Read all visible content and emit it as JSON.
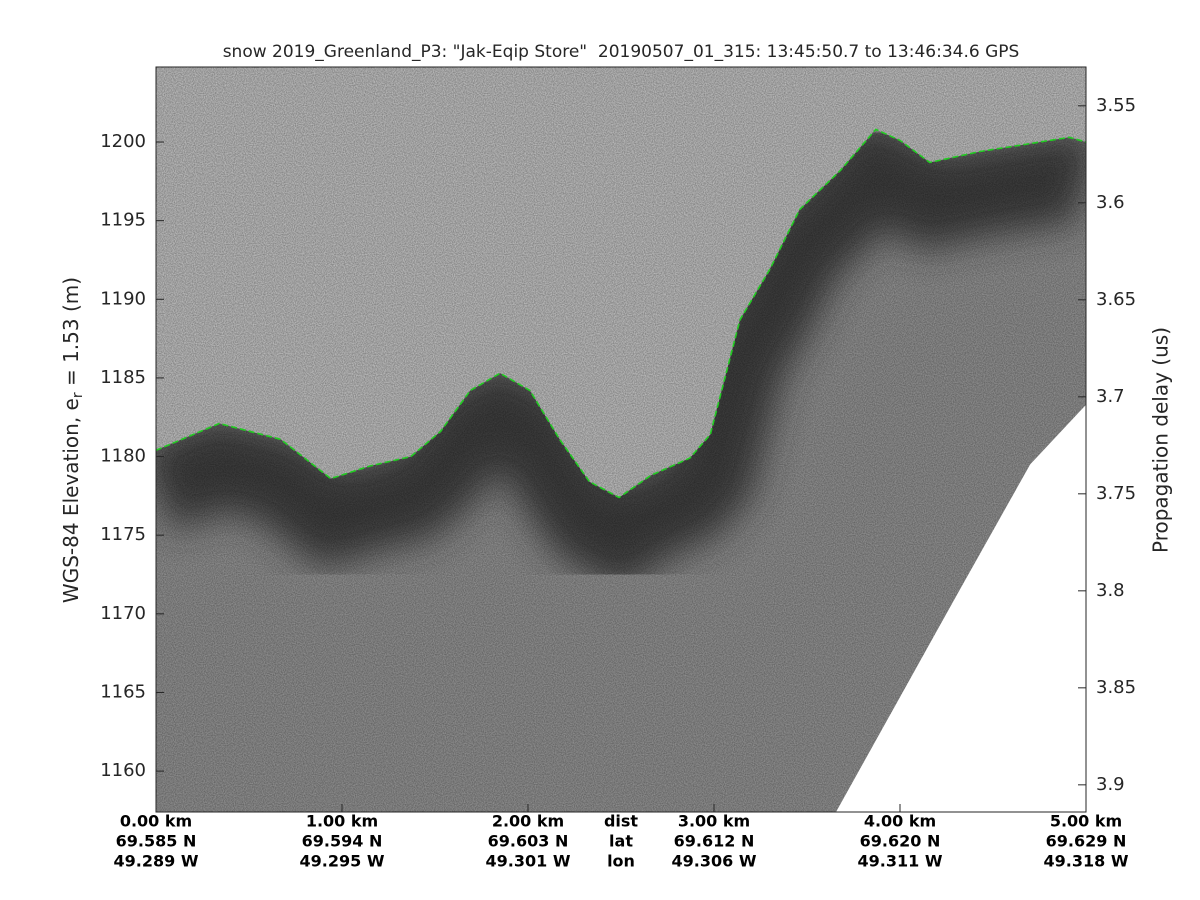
{
  "chart_data": {
    "type": "echogram",
    "title": "snow 2019_Greenland_P3: \"Jak-Eqip Store\"  20190507_01_315: 13:45:50.7 to 13:46:34.6 GPS",
    "ylabel": {
      "main": "WGS-84 Elevation, e",
      "sub": "r",
      "rest": " = 1.53 (m)"
    },
    "y2label": "Propagation delay (us)",
    "xlim": [
      0,
      5
    ],
    "xticks": [
      {
        "value": 0,
        "label": "0.00 km"
      },
      {
        "value": 1,
        "label": "1.00 km"
      },
      {
        "value": 2,
        "label": "2.00 km"
      },
      {
        "value": 3,
        "label": "3.00 km"
      },
      {
        "value": 4,
        "label": "4.00 km"
      },
      {
        "value": 5,
        "label": "5.00 km"
      }
    ],
    "lat_labels": [
      "69.585 N",
      "69.594 N",
      "69.603 N",
      "69.612 N",
      "69.620 N",
      "69.629 N"
    ],
    "lon_labels": [
      "49.289 W",
      "49.295 W",
      "49.301 W",
      "49.306 W",
      "49.311 W",
      "49.318 W"
    ],
    "row_labels": [
      "dist",
      "lat",
      "lon"
    ],
    "ylim": [
      1157.4,
      1204.77
    ],
    "yticks": [
      1160,
      1165,
      1170,
      1175,
      1180,
      1185,
      1190,
      1195,
      1200
    ],
    "y2lim": [
      3.53,
      3.914
    ],
    "y2ticks": [
      3.55,
      3.6,
      3.65,
      3.7,
      3.75,
      3.8,
      3.85,
      3.9
    ],
    "series": [
      {
        "color": "#22cc22",
        "x": [
          0,
          0.34,
          0.67,
          0.94,
          1.15,
          1.37,
          1.53,
          1.69,
          1.85,
          2.01,
          2.17,
          2.33,
          2.49,
          2.66,
          2.87,
          2.98,
          3.14,
          3.3,
          3.46,
          3.68,
          3.87,
          4.0,
          4.16,
          4.43,
          4.7,
          4.91,
          5.0
        ],
        "values": [
          1180.4,
          1182.1,
          1181.1,
          1178.6,
          1179.4,
          1180.0,
          1181.6,
          1184.2,
          1185.3,
          1184.2,
          1181.1,
          1178.4,
          1177.4,
          1178.8,
          1179.9,
          1181.4,
          1188.7,
          1191.9,
          1195.7,
          1198.2,
          1200.8,
          1200.1,
          1198.7,
          1199.4,
          1199.9,
          1200.3,
          1200.0
        ]
      }
    ],
    "data_extent": {
      "x": [
        3.656,
        4.32,
        4.7,
        5.0
      ],
      "values": [
        1157.4,
        1171.5,
        1179.5,
        1183.3
      ]
    }
  }
}
